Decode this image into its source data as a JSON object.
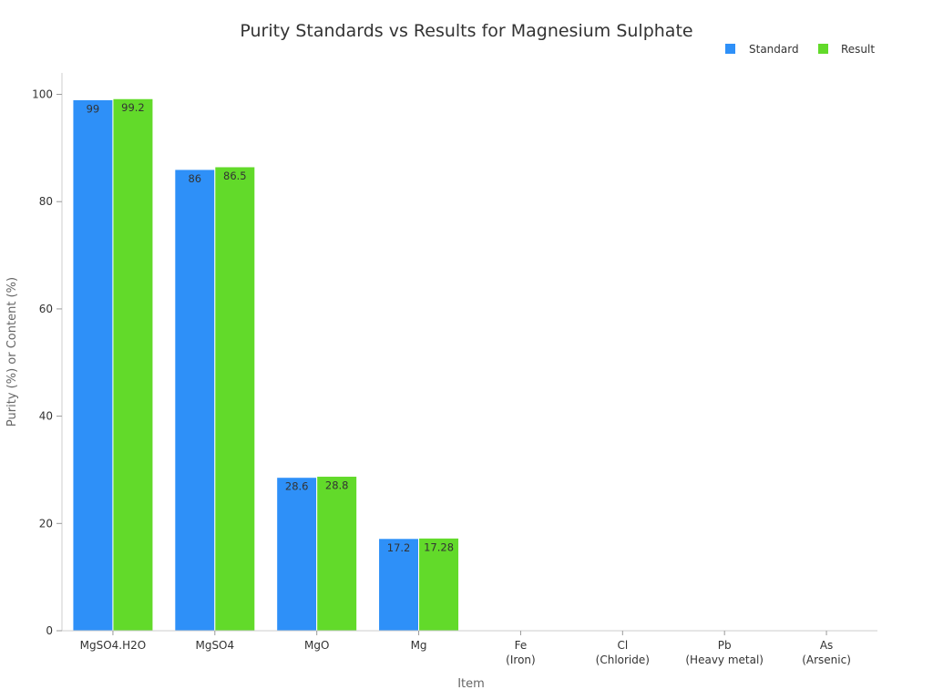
{
  "chart_data": {
    "type": "bar",
    "title": "Purity Standards vs Results for Magnesium Sulphate",
    "xlabel": "Item",
    "ylabel": "Purity (%) or Content (%)",
    "ylim": [
      0,
      104
    ],
    "yticks": [
      0,
      20,
      40,
      60,
      80,
      100
    ],
    "grid": false,
    "legend_position": "top-right",
    "categories": [
      [
        "MgSO4.H2O"
      ],
      [
        "MgSO4"
      ],
      [
        "MgO"
      ],
      [
        "Mg"
      ],
      [
        "Fe",
        "(Iron)"
      ],
      [
        "Cl",
        "(Chloride)"
      ],
      [
        "Pb",
        "(Heavy metal)"
      ],
      [
        "As",
        "(Arsenic)"
      ]
    ],
    "series": [
      {
        "name": "Standard",
        "color": "#2E90F8",
        "values": [
          99,
          86,
          28.6,
          17.2,
          null,
          null,
          null,
          null
        ]
      },
      {
        "name": "Result",
        "color": "#62DA2A",
        "values": [
          99.2,
          86.5,
          28.8,
          17.28,
          null,
          null,
          null,
          null
        ]
      }
    ]
  }
}
